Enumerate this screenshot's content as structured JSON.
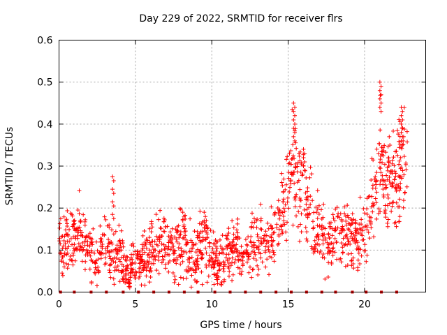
{
  "chart_data": {
    "type": "scatter",
    "title": "Day 229 of 2022, SRMTID for receiver flrs",
    "xlabel": "GPS time / hours",
    "ylabel": "SRMTID / TECUs",
    "xlim": [
      0,
      24
    ],
    "ylim": [
      0,
      0.6
    ],
    "xticks": [
      0,
      5,
      10,
      15,
      20
    ],
    "yticks": [
      0,
      0.1,
      0.2,
      0.3,
      0.4,
      0.5,
      0.6
    ],
    "grid": true,
    "marker": "plus",
    "color": "#ff0000",
    "series": [
      {
        "name": "SRMTID",
        "profile": [
          {
            "t": 0.0,
            "v": 0.12
          },
          {
            "t": 0.5,
            "v": 0.12
          },
          {
            "t": 1.0,
            "v": 0.13
          },
          {
            "t": 1.5,
            "v": 0.14
          },
          {
            "t": 2.0,
            "v": 0.1
          },
          {
            "t": 2.5,
            "v": 0.08
          },
          {
            "t": 3.0,
            "v": 0.12
          },
          {
            "t": 3.5,
            "v": 0.09
          },
          {
            "t": 4.0,
            "v": 0.08
          },
          {
            "t": 4.5,
            "v": 0.05
          },
          {
            "t": 5.0,
            "v": 0.06
          },
          {
            "t": 5.5,
            "v": 0.08
          },
          {
            "t": 6.0,
            "v": 0.09
          },
          {
            "t": 6.5,
            "v": 0.11
          },
          {
            "t": 7.0,
            "v": 0.12
          },
          {
            "t": 7.5,
            "v": 0.1
          },
          {
            "t": 8.0,
            "v": 0.13
          },
          {
            "t": 8.5,
            "v": 0.1
          },
          {
            "t": 9.0,
            "v": 0.09
          },
          {
            "t": 9.5,
            "v": 0.12
          },
          {
            "t": 10.0,
            "v": 0.08
          },
          {
            "t": 10.5,
            "v": 0.07
          },
          {
            "t": 11.0,
            "v": 0.09
          },
          {
            "t": 11.5,
            "v": 0.1
          },
          {
            "t": 12.0,
            "v": 0.1
          },
          {
            "t": 12.5,
            "v": 0.11
          },
          {
            "t": 13.0,
            "v": 0.12
          },
          {
            "t": 13.5,
            "v": 0.12
          },
          {
            "t": 14.0,
            "v": 0.14
          },
          {
            "t": 14.5,
            "v": 0.17
          },
          {
            "t": 15.0,
            "v": 0.25
          },
          {
            "t": 15.3,
            "v": 0.33
          },
          {
            "t": 15.7,
            "v": 0.22
          },
          {
            "t": 16.0,
            "v": 0.24
          },
          {
            "t": 16.5,
            "v": 0.18
          },
          {
            "t": 17.0,
            "v": 0.13
          },
          {
            "t": 17.5,
            "v": 0.12
          },
          {
            "t": 18.0,
            "v": 0.13
          },
          {
            "t": 18.5,
            "v": 0.14
          },
          {
            "t": 19.0,
            "v": 0.13
          },
          {
            "t": 19.5,
            "v": 0.12
          },
          {
            "t": 20.0,
            "v": 0.15
          },
          {
            "t": 20.5,
            "v": 0.22
          },
          {
            "t": 21.0,
            "v": 0.32
          },
          {
            "t": 21.5,
            "v": 0.26
          },
          {
            "t": 22.0,
            "v": 0.25
          },
          {
            "t": 22.5,
            "v": 0.32
          },
          {
            "t": 22.8,
            "v": 0.32
          }
        ],
        "spikes": [
          {
            "x": 3.5,
            "values": [
              0.275,
              0.245,
              0.215,
              0.185
            ]
          },
          {
            "x": 15.35,
            "values": [
              0.45,
              0.43,
              0.41,
              0.39,
              0.37
            ]
          },
          {
            "x": 21.0,
            "values": [
              0.5,
              0.48,
              0.46,
              0.44
            ]
          },
          {
            "x": 22.4,
            "values": [
              0.44,
              0.42,
              0.4,
              0.38,
              0.36
            ]
          },
          {
            "x": 16.0,
            "values": [
              0.34,
              0.32,
              0.3
            ]
          },
          {
            "x": 9.5,
            "values": [
              0.19,
              0.17
            ]
          },
          {
            "x": 8.1,
            "values": [
              0.19,
              0.17
            ]
          },
          {
            "x": 4.55,
            "values": [
              0.02,
              0.03
            ]
          },
          {
            "x": 10.3,
            "values": [
              0.03,
              0.04
            ]
          }
        ],
        "baseline_x": [
          0.1,
          1.0,
          2.1,
          3.1,
          4.2,
          5.2,
          6.2,
          7.2,
          8.2,
          9.1,
          10.2,
          11.2,
          12.2,
          13.2,
          14.2,
          15.2,
          16.2,
          17.2,
          18.1,
          19.2,
          20.1,
          21.1,
          22.1
        ],
        "baseline_value": 0
      }
    ]
  }
}
